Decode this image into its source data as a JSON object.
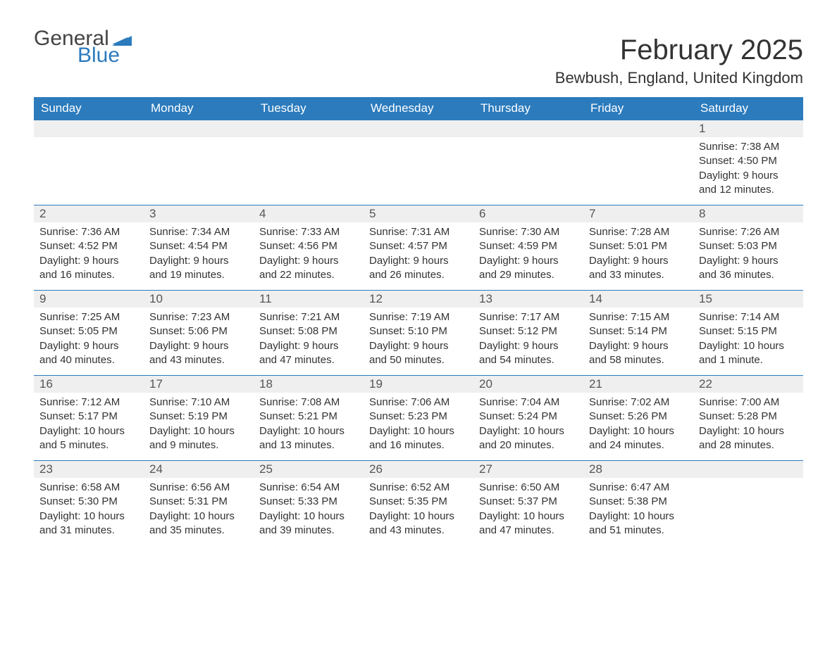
{
  "logo": {
    "text_general": "General",
    "text_blue": "Blue",
    "flag_color": "#2b7bbd"
  },
  "title": "February 2025",
  "location": "Bewbush, England, United Kingdom",
  "style": {
    "header_bg": "#2b7bbd",
    "header_fg": "#ffffff",
    "daynum_bg": "#efefef",
    "week_border": "#2b7bbd",
    "body_fg": "#333333",
    "title_fontsize": 40,
    "subtitle_fontsize": 22,
    "header_fontsize": 17,
    "daynum_fontsize": 17,
    "body_fontsize": 15
  },
  "day_headers": [
    "Sunday",
    "Monday",
    "Tuesday",
    "Wednesday",
    "Thursday",
    "Friday",
    "Saturday"
  ],
  "weeks": [
    [
      {
        "day": "",
        "sunrise": "",
        "sunset": "",
        "daylight": ""
      },
      {
        "day": "",
        "sunrise": "",
        "sunset": "",
        "daylight": ""
      },
      {
        "day": "",
        "sunrise": "",
        "sunset": "",
        "daylight": ""
      },
      {
        "day": "",
        "sunrise": "",
        "sunset": "",
        "daylight": ""
      },
      {
        "day": "",
        "sunrise": "",
        "sunset": "",
        "daylight": ""
      },
      {
        "day": "",
        "sunrise": "",
        "sunset": "",
        "daylight": ""
      },
      {
        "day": "1",
        "sunrise": "Sunrise: 7:38 AM",
        "sunset": "Sunset: 4:50 PM",
        "daylight": "Daylight: 9 hours and 12 minutes."
      }
    ],
    [
      {
        "day": "2",
        "sunrise": "Sunrise: 7:36 AM",
        "sunset": "Sunset: 4:52 PM",
        "daylight": "Daylight: 9 hours and 16 minutes."
      },
      {
        "day": "3",
        "sunrise": "Sunrise: 7:34 AM",
        "sunset": "Sunset: 4:54 PM",
        "daylight": "Daylight: 9 hours and 19 minutes."
      },
      {
        "day": "4",
        "sunrise": "Sunrise: 7:33 AM",
        "sunset": "Sunset: 4:56 PM",
        "daylight": "Daylight: 9 hours and 22 minutes."
      },
      {
        "day": "5",
        "sunrise": "Sunrise: 7:31 AM",
        "sunset": "Sunset: 4:57 PM",
        "daylight": "Daylight: 9 hours and 26 minutes."
      },
      {
        "day": "6",
        "sunrise": "Sunrise: 7:30 AM",
        "sunset": "Sunset: 4:59 PM",
        "daylight": "Daylight: 9 hours and 29 minutes."
      },
      {
        "day": "7",
        "sunrise": "Sunrise: 7:28 AM",
        "sunset": "Sunset: 5:01 PM",
        "daylight": "Daylight: 9 hours and 33 minutes."
      },
      {
        "day": "8",
        "sunrise": "Sunrise: 7:26 AM",
        "sunset": "Sunset: 5:03 PM",
        "daylight": "Daylight: 9 hours and 36 minutes."
      }
    ],
    [
      {
        "day": "9",
        "sunrise": "Sunrise: 7:25 AM",
        "sunset": "Sunset: 5:05 PM",
        "daylight": "Daylight: 9 hours and 40 minutes."
      },
      {
        "day": "10",
        "sunrise": "Sunrise: 7:23 AM",
        "sunset": "Sunset: 5:06 PM",
        "daylight": "Daylight: 9 hours and 43 minutes."
      },
      {
        "day": "11",
        "sunrise": "Sunrise: 7:21 AM",
        "sunset": "Sunset: 5:08 PM",
        "daylight": "Daylight: 9 hours and 47 minutes."
      },
      {
        "day": "12",
        "sunrise": "Sunrise: 7:19 AM",
        "sunset": "Sunset: 5:10 PM",
        "daylight": "Daylight: 9 hours and 50 minutes."
      },
      {
        "day": "13",
        "sunrise": "Sunrise: 7:17 AM",
        "sunset": "Sunset: 5:12 PM",
        "daylight": "Daylight: 9 hours and 54 minutes."
      },
      {
        "day": "14",
        "sunrise": "Sunrise: 7:15 AM",
        "sunset": "Sunset: 5:14 PM",
        "daylight": "Daylight: 9 hours and 58 minutes."
      },
      {
        "day": "15",
        "sunrise": "Sunrise: 7:14 AM",
        "sunset": "Sunset: 5:15 PM",
        "daylight": "Daylight: 10 hours and 1 minute."
      }
    ],
    [
      {
        "day": "16",
        "sunrise": "Sunrise: 7:12 AM",
        "sunset": "Sunset: 5:17 PM",
        "daylight": "Daylight: 10 hours and 5 minutes."
      },
      {
        "day": "17",
        "sunrise": "Sunrise: 7:10 AM",
        "sunset": "Sunset: 5:19 PM",
        "daylight": "Daylight: 10 hours and 9 minutes."
      },
      {
        "day": "18",
        "sunrise": "Sunrise: 7:08 AM",
        "sunset": "Sunset: 5:21 PM",
        "daylight": "Daylight: 10 hours and 13 minutes."
      },
      {
        "day": "19",
        "sunrise": "Sunrise: 7:06 AM",
        "sunset": "Sunset: 5:23 PM",
        "daylight": "Daylight: 10 hours and 16 minutes."
      },
      {
        "day": "20",
        "sunrise": "Sunrise: 7:04 AM",
        "sunset": "Sunset: 5:24 PM",
        "daylight": "Daylight: 10 hours and 20 minutes."
      },
      {
        "day": "21",
        "sunrise": "Sunrise: 7:02 AM",
        "sunset": "Sunset: 5:26 PM",
        "daylight": "Daylight: 10 hours and 24 minutes."
      },
      {
        "day": "22",
        "sunrise": "Sunrise: 7:00 AM",
        "sunset": "Sunset: 5:28 PM",
        "daylight": "Daylight: 10 hours and 28 minutes."
      }
    ],
    [
      {
        "day": "23",
        "sunrise": "Sunrise: 6:58 AM",
        "sunset": "Sunset: 5:30 PM",
        "daylight": "Daylight: 10 hours and 31 minutes."
      },
      {
        "day": "24",
        "sunrise": "Sunrise: 6:56 AM",
        "sunset": "Sunset: 5:31 PM",
        "daylight": "Daylight: 10 hours and 35 minutes."
      },
      {
        "day": "25",
        "sunrise": "Sunrise: 6:54 AM",
        "sunset": "Sunset: 5:33 PM",
        "daylight": "Daylight: 10 hours and 39 minutes."
      },
      {
        "day": "26",
        "sunrise": "Sunrise: 6:52 AM",
        "sunset": "Sunset: 5:35 PM",
        "daylight": "Daylight: 10 hours and 43 minutes."
      },
      {
        "day": "27",
        "sunrise": "Sunrise: 6:50 AM",
        "sunset": "Sunset: 5:37 PM",
        "daylight": "Daylight: 10 hours and 47 minutes."
      },
      {
        "day": "28",
        "sunrise": "Sunrise: 6:47 AM",
        "sunset": "Sunset: 5:38 PM",
        "daylight": "Daylight: 10 hours and 51 minutes."
      },
      {
        "day": "",
        "sunrise": "",
        "sunset": "",
        "daylight": ""
      }
    ]
  ]
}
